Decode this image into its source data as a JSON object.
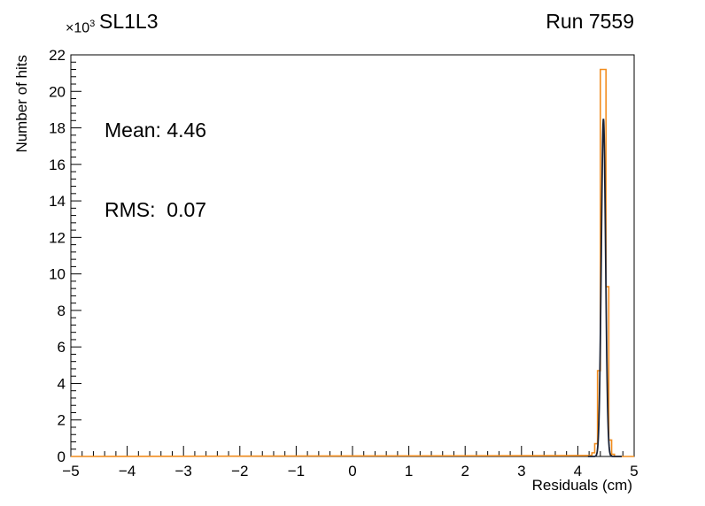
{
  "chart_data": {
    "type": "histogram",
    "title": "SL1L3",
    "top_right_label": "Run 7559",
    "y_multiplier_base": "×10",
    "y_multiplier_exp": "3",
    "annotations": [
      {
        "name": "mean",
        "text": "Mean: 4.46"
      },
      {
        "name": "rms",
        "text": "RMS:  0.07"
      }
    ],
    "xlabel": "Residuals (cm)",
    "ylabel": "Number of hits",
    "xlim": [
      -5,
      5
    ],
    "ylim": [
      0,
      22
    ],
    "x_major_step": 1,
    "x_minor_step": 0.2,
    "y_major_step": 2,
    "y_minor_step": 0.4,
    "x_ticks": [
      {
        "v": -5,
        "label": "−5"
      },
      {
        "v": -4,
        "label": "−4"
      },
      {
        "v": -3,
        "label": "−3"
      },
      {
        "v": -2,
        "label": "−2"
      },
      {
        "v": -1,
        "label": "−1"
      },
      {
        "v": 0,
        "label": "0"
      },
      {
        "v": 1,
        "label": "1"
      },
      {
        "v": 2,
        "label": "2"
      },
      {
        "v": 3,
        "label": "3"
      },
      {
        "v": 4,
        "label": "4"
      },
      {
        "v": 5,
        "label": "5"
      }
    ],
    "y_ticks": [
      {
        "v": 0,
        "label": "0"
      },
      {
        "v": 2,
        "label": "2"
      },
      {
        "v": 4,
        "label": "4"
      },
      {
        "v": 6,
        "label": "6"
      },
      {
        "v": 8,
        "label": "8"
      },
      {
        "v": 10,
        "label": "10"
      },
      {
        "v": 12,
        "label": "12"
      },
      {
        "v": 14,
        "label": "14"
      },
      {
        "v": 16,
        "label": "16"
      },
      {
        "v": 18,
        "label": "18"
      },
      {
        "v": 20,
        "label": "20"
      },
      {
        "v": 22,
        "label": "22"
      }
    ],
    "series": [
      {
        "name": "residuals-histogram",
        "style": "step-outline",
        "color": "#f28d1e",
        "bin_width": 0.05,
        "bins": [
          [
            4.2,
            0.05
          ],
          [
            4.25,
            0.2
          ],
          [
            4.3,
            0.7
          ],
          [
            4.35,
            4.7
          ],
          [
            4.4,
            21.2
          ],
          [
            4.45,
            21.2
          ],
          [
            4.5,
            9.3
          ],
          [
            4.55,
            0.9
          ],
          [
            4.6,
            0.12
          ],
          [
            4.65,
            0.0
          ]
        ]
      },
      {
        "name": "gaussian-fit",
        "style": "smooth-curve",
        "color": "#1a2235",
        "gauss": {
          "mean": 4.455,
          "sigma": 0.038,
          "amplitude": 18.5
        },
        "range": [
          4.18,
          4.78
        ]
      }
    ]
  }
}
